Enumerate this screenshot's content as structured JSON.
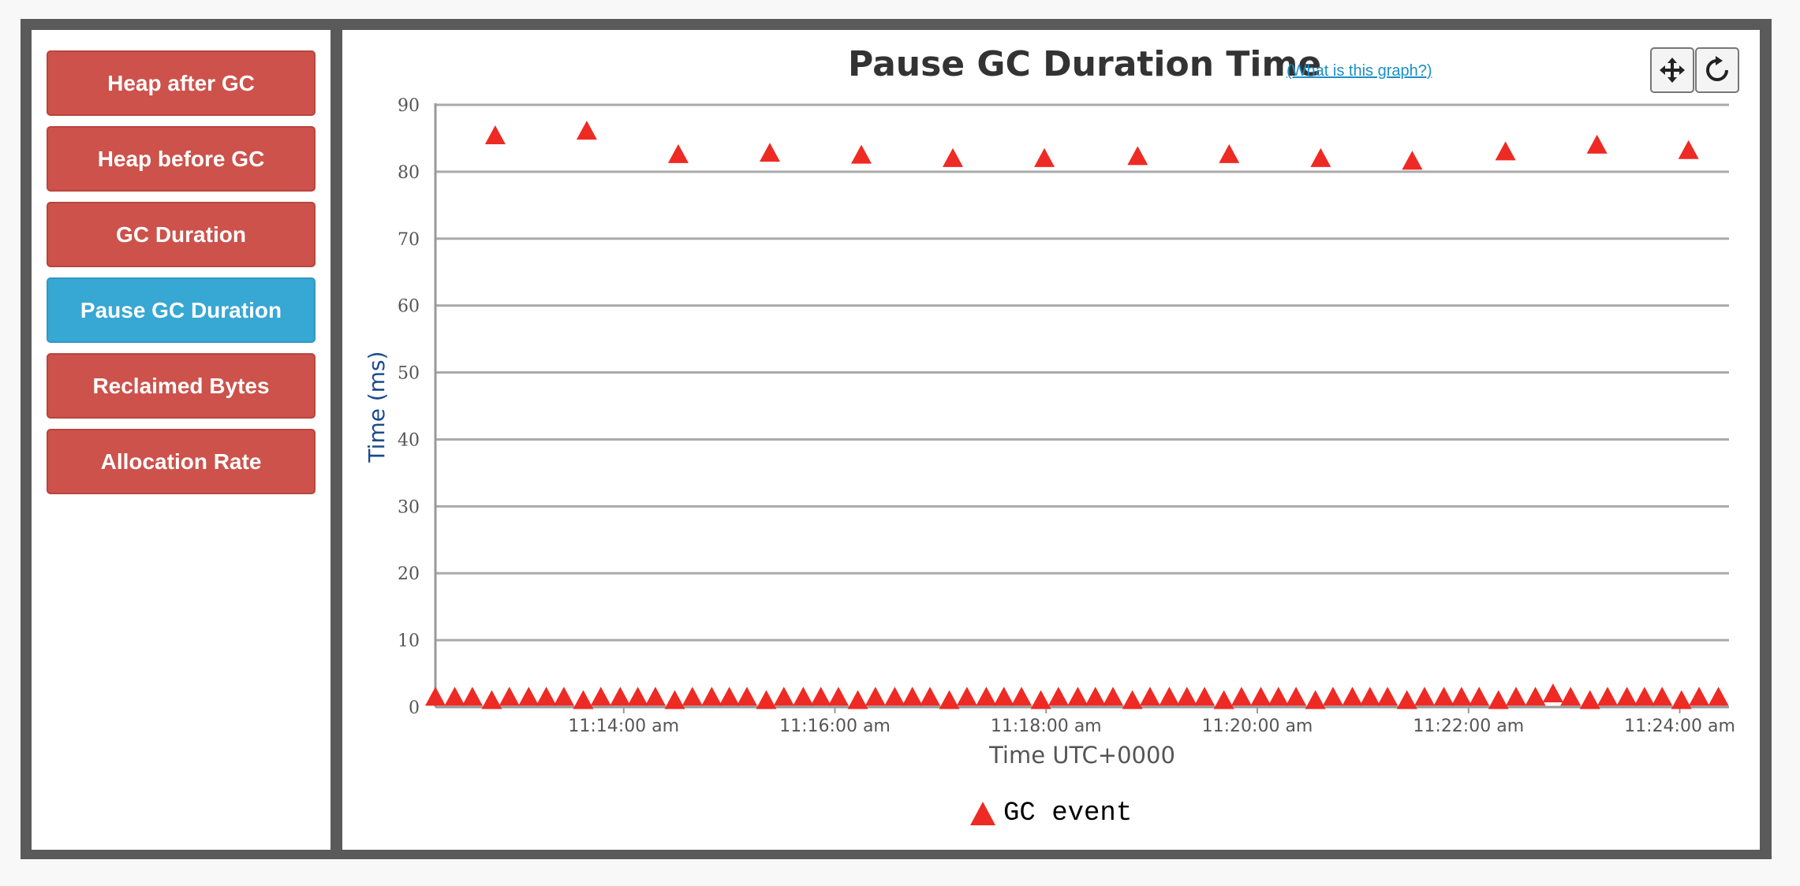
{
  "sidebar": {
    "buttons": [
      {
        "label": "Heap after GC",
        "active": false
      },
      {
        "label": "Heap before GC",
        "active": false
      },
      {
        "label": "GC Duration",
        "active": false
      },
      {
        "label": "Pause GC Duration",
        "active": true
      },
      {
        "label": "Reclaimed Bytes",
        "active": false
      },
      {
        "label": "Allocation Rate",
        "active": false
      }
    ]
  },
  "colors": {
    "button": "#cc524b",
    "active_button": "#37a7d3",
    "marker": "#ee2a24",
    "gridline": "#aaaaaa",
    "axis_label": "#1c4b8c"
  },
  "toolbar": {
    "pan_icon": "move-arrows-icon",
    "reset_icon": "refresh-icon"
  },
  "chart_data": {
    "type": "scatter",
    "title": "Pause GC Duration Time",
    "help_link": "(What is this graph?)",
    "xlabel": "Time UTC+0000",
    "ylabel": "Time (ms)",
    "ylim": [
      0,
      90
    ],
    "y_ticks": [
      0,
      10,
      20,
      30,
      40,
      50,
      60,
      70,
      80,
      90
    ],
    "xlim": [
      "11:12:13",
      "11:24:28"
    ],
    "x_ticks": [
      "11:14:00 am",
      "11:16:00 am",
      "11:18:00 am",
      "11:20:00 am",
      "11:22:00 am",
      "11:24:00 am"
    ],
    "grid": true,
    "legend_position": "bottom-center",
    "marker": "triangle",
    "series": [
      {
        "name": "GC event",
        "high_pauses": [
          {
            "x": "11:12:47",
            "y": 85.4
          },
          {
            "x": "11:13:39",
            "y": 86.1
          },
          {
            "x": "11:14:31",
            "y": 82.6
          },
          {
            "x": "11:15:23",
            "y": 82.8
          },
          {
            "x": "11:16:15",
            "y": 82.5
          },
          {
            "x": "11:17:07",
            "y": 82.0
          },
          {
            "x": "11:17:59",
            "y": 82.0
          },
          {
            "x": "11:18:52",
            "y": 82.3
          },
          {
            "x": "11:19:44",
            "y": 82.6
          },
          {
            "x": "11:20:36",
            "y": 82.0
          },
          {
            "x": "11:21:28",
            "y": 81.6
          },
          {
            "x": "11:22:21",
            "y": 83.0
          },
          {
            "x": "11:23:13",
            "y": 84.0
          },
          {
            "x": "11:24:05",
            "y": 83.2
          }
        ],
        "low_pauses": [
          {
            "x": "11:12:13",
            "y": 1.5
          },
          {
            "x": "11:12:24",
            "y": 1.5
          },
          {
            "x": "11:12:34",
            "y": 1.5
          },
          {
            "x": "11:12:45",
            "y": 1.0
          },
          {
            "x": "11:12:55",
            "y": 1.5
          },
          {
            "x": "11:13:06",
            "y": 1.5
          },
          {
            "x": "11:13:16",
            "y": 1.5
          },
          {
            "x": "11:13:26",
            "y": 1.5
          },
          {
            "x": "11:13:37",
            "y": 1.0
          },
          {
            "x": "11:13:47",
            "y": 1.5
          },
          {
            "x": "11:13:58",
            "y": 1.5
          },
          {
            "x": "11:14:08",
            "y": 1.5
          },
          {
            "x": "11:14:18",
            "y": 1.5
          },
          {
            "x": "11:14:29",
            "y": 1.0
          },
          {
            "x": "11:14:39",
            "y": 1.5
          },
          {
            "x": "11:14:50",
            "y": 1.5
          },
          {
            "x": "11:15:00",
            "y": 1.5
          },
          {
            "x": "11:15:10",
            "y": 1.5
          },
          {
            "x": "11:15:21",
            "y": 1.0
          },
          {
            "x": "11:15:31",
            "y": 1.5
          },
          {
            "x": "11:15:42",
            "y": 1.5
          },
          {
            "x": "11:15:52",
            "y": 1.5
          },
          {
            "x": "11:16:02",
            "y": 1.5
          },
          {
            "x": "11:16:13",
            "y": 1.0
          },
          {
            "x": "11:16:23",
            "y": 1.5
          },
          {
            "x": "11:16:34",
            "y": 1.5
          },
          {
            "x": "11:16:44",
            "y": 1.5
          },
          {
            "x": "11:16:54",
            "y": 1.5
          },
          {
            "x": "11:17:05",
            "y": 1.0
          },
          {
            "x": "11:17:15",
            "y": 1.5
          },
          {
            "x": "11:17:26",
            "y": 1.5
          },
          {
            "x": "11:17:36",
            "y": 1.5
          },
          {
            "x": "11:17:46",
            "y": 1.5
          },
          {
            "x": "11:17:57",
            "y": 1.0
          },
          {
            "x": "11:18:07",
            "y": 1.5
          },
          {
            "x": "11:18:18",
            "y": 1.5
          },
          {
            "x": "11:18:28",
            "y": 1.5
          },
          {
            "x": "11:18:38",
            "y": 1.5
          },
          {
            "x": "11:18:49",
            "y": 1.0
          },
          {
            "x": "11:18:59",
            "y": 1.5
          },
          {
            "x": "11:19:10",
            "y": 1.5
          },
          {
            "x": "11:19:20",
            "y": 1.5
          },
          {
            "x": "11:19:30",
            "y": 1.5
          },
          {
            "x": "11:19:41",
            "y": 1.0
          },
          {
            "x": "11:19:51",
            "y": 1.5
          },
          {
            "x": "11:20:02",
            "y": 1.5
          },
          {
            "x": "11:20:12",
            "y": 1.5
          },
          {
            "x": "11:20:22",
            "y": 1.5
          },
          {
            "x": "11:20:33",
            "y": 1.0
          },
          {
            "x": "11:20:43",
            "y": 1.5
          },
          {
            "x": "11:20:54",
            "y": 1.5
          },
          {
            "x": "11:21:04",
            "y": 1.5
          },
          {
            "x": "11:21:14",
            "y": 1.5
          },
          {
            "x": "11:21:25",
            "y": 1.0
          },
          {
            "x": "11:21:35",
            "y": 1.5
          },
          {
            "x": "11:21:46",
            "y": 1.5
          },
          {
            "x": "11:21:56",
            "y": 1.5
          },
          {
            "x": "11:22:06",
            "y": 1.5
          },
          {
            "x": "11:22:17",
            "y": 1.0
          },
          {
            "x": "11:22:27",
            "y": 1.5
          },
          {
            "x": "11:22:38",
            "y": 1.5
          },
          {
            "x": "11:22:48",
            "y": 2.0
          },
          {
            "x": "11:22:58",
            "y": 1.5
          },
          {
            "x": "11:23:09",
            "y": 1.0
          },
          {
            "x": "11:23:19",
            "y": 1.5
          },
          {
            "x": "11:23:30",
            "y": 1.5
          },
          {
            "x": "11:23:40",
            "y": 1.5
          },
          {
            "x": "11:23:50",
            "y": 1.5
          },
          {
            "x": "11:24:01",
            "y": 1.0
          },
          {
            "x": "11:24:11",
            "y": 1.5
          },
          {
            "x": "11:24:22",
            "y": 1.5
          }
        ]
      }
    ]
  }
}
